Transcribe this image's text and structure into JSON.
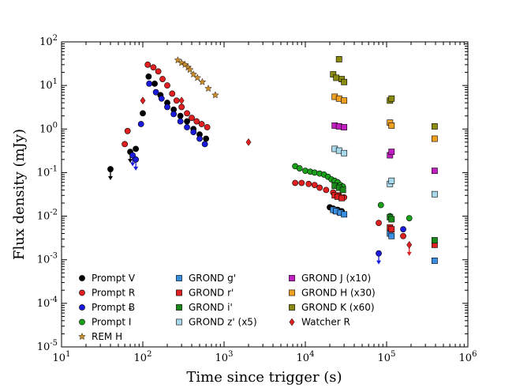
{
  "chart_data": {
    "type": "scatter",
    "title": "",
    "xlabel": "Time since trigger (s)",
    "ylabel": "Flux density (mJy)",
    "xscale": "log",
    "yscale": "log",
    "xlim": [
      10,
      1000000
    ],
    "ylim": [
      1e-05,
      100
    ],
    "x_ticks": [
      {
        "value": 10,
        "mant": "10",
        "exp": "1"
      },
      {
        "value": 100,
        "mant": "10",
        "exp": "2"
      },
      {
        "value": 1000,
        "mant": "10",
        "exp": "3"
      },
      {
        "value": 10000,
        "mant": "10",
        "exp": "4"
      },
      {
        "value": 100000,
        "mant": "10",
        "exp": "5"
      },
      {
        "value": 1000000,
        "mant": "10",
        "exp": "6"
      }
    ],
    "y_ticks": [
      {
        "value": 1e-05,
        "mant": "10",
        "exp": "-5"
      },
      {
        "value": 0.0001,
        "mant": "10",
        "exp": "-4"
      },
      {
        "value": 0.001,
        "mant": "10",
        "exp": "-3"
      },
      {
        "value": 0.01,
        "mant": "10",
        "exp": "-2"
      },
      {
        "value": 0.1,
        "mant": "10",
        "exp": "-1"
      },
      {
        "value": 1,
        "mant": "10",
        "exp": "0"
      },
      {
        "value": 10,
        "mant": "10",
        "exp": "1"
      },
      {
        "value": 100,
        "mant": "10",
        "exp": "2"
      }
    ],
    "legend_position": "lower-left",
    "series": [
      {
        "name": "Prompt V",
        "marker": "circle",
        "color": "#000000",
        "points": [
          [
            82,
            0.35
          ],
          [
            100,
            2.3
          ],
          [
            118,
            16
          ],
          [
            140,
            11
          ],
          [
            165,
            6
          ],
          [
            200,
            4
          ],
          [
            240,
            2.8
          ],
          [
            290,
            2
          ],
          [
            350,
            1.5
          ],
          [
            420,
            1
          ],
          [
            500,
            0.75
          ],
          [
            600,
            0.6
          ],
          [
            20000,
            0.016
          ],
          [
            22000,
            0.015
          ],
          [
            25000,
            0.014
          ],
          [
            28000,
            0.013
          ]
        ],
        "upper_limits": [
          [
            40,
            0.12
          ],
          [
            70,
            0.3
          ]
        ]
      },
      {
        "name": "Prompt R",
        "marker": "circle",
        "color": "#e02020",
        "points": [
          [
            60,
            0.45
          ],
          [
            65,
            0.9
          ],
          [
            115,
            30
          ],
          [
            135,
            26
          ],
          [
            155,
            21
          ],
          [
            175,
            14
          ],
          [
            200,
            10
          ],
          [
            230,
            6.5
          ],
          [
            260,
            4.5
          ],
          [
            300,
            3.2
          ],
          [
            350,
            2.3
          ],
          [
            400,
            1.8
          ],
          [
            460,
            1.5
          ],
          [
            530,
            1.3
          ],
          [
            620,
            1.1
          ],
          [
            7500,
            0.058
          ],
          [
            9000,
            0.058
          ],
          [
            11000,
            0.055
          ],
          [
            13000,
            0.052
          ],
          [
            15000,
            0.045
          ],
          [
            18000,
            0.04
          ],
          [
            22000,
            0.035
          ],
          [
            26000,
            0.03
          ],
          [
            30000,
            0.027
          ],
          [
            80000,
            0.007
          ],
          [
            110000,
            0.004
          ],
          [
            160000,
            0.0035
          ]
        ]
      },
      {
        "name": "Prompt Ƀ",
        "marker": "circle",
        "color": "#1a1adc",
        "points": [
          [
            95,
            1.3
          ],
          [
            120,
            11
          ],
          [
            145,
            7
          ],
          [
            170,
            5
          ],
          [
            200,
            3.2
          ],
          [
            240,
            2.2
          ],
          [
            290,
            1.5
          ],
          [
            350,
            1.1
          ],
          [
            420,
            0.85
          ],
          [
            500,
            0.6
          ],
          [
            580,
            0.45
          ],
          [
            23000,
            0.013
          ],
          [
            26000,
            0.012
          ],
          [
            110000,
            0.005
          ],
          [
            160000,
            0.005
          ]
        ],
        "upper_limits": [
          [
            75,
            0.25
          ],
          [
            82,
            0.2
          ],
          [
            80000,
            0.0014
          ]
        ]
      },
      {
        "name": "Prompt I",
        "marker": "circle",
        "color": "#1aa01a",
        "points": [
          [
            7500,
            0.14
          ],
          [
            8500,
            0.125
          ],
          [
            10000,
            0.11
          ],
          [
            11500,
            0.105
          ],
          [
            13000,
            0.1
          ],
          [
            15000,
            0.095
          ],
          [
            17000,
            0.09
          ],
          [
            19000,
            0.08
          ],
          [
            21000,
            0.07
          ],
          [
            23000,
            0.065
          ],
          [
            25000,
            0.06
          ],
          [
            27000,
            0.052
          ],
          [
            29000,
            0.048
          ],
          [
            85000,
            0.018
          ],
          [
            110000,
            0.01
          ],
          [
            190000,
            0.009
          ]
        ]
      },
      {
        "name": "REM H",
        "marker": "star",
        "color": "#c88a2a",
        "points": [
          [
            270,
            38
          ],
          [
            300,
            33
          ],
          [
            330,
            30
          ],
          [
            360,
            26
          ],
          [
            380,
            23
          ],
          [
            420,
            18
          ],
          [
            470,
            15
          ],
          [
            540,
            12
          ],
          [
            640,
            8.5
          ],
          [
            780,
            6
          ]
        ]
      },
      {
        "name": "GROND g'",
        "marker": "square",
        "color": "#3a8ee0",
        "points": [
          [
            22000,
            0.014
          ],
          [
            24000,
            0.013
          ],
          [
            27000,
            0.012
          ],
          [
            30000,
            0.011
          ],
          [
            110000,
            0.004
          ],
          [
            115000,
            0.0035
          ],
          [
            390000,
            0.00095
          ]
        ]
      },
      {
        "name": "GROND r'",
        "marker": "square",
        "color": "#e02020",
        "points": [
          [
            23000,
            0.03
          ],
          [
            25000,
            0.028
          ],
          [
            28000,
            0.026
          ],
          [
            110000,
            0.0055
          ],
          [
            115000,
            0.005
          ],
          [
            390000,
            0.0022
          ]
        ]
      },
      {
        "name": "GROND i'",
        "marker": "square",
        "color": "#1a8a1a",
        "points": [
          [
            23000,
            0.05
          ],
          [
            26000,
            0.045
          ],
          [
            29000,
            0.04
          ],
          [
            110000,
            0.0095
          ],
          [
            115000,
            0.0085
          ],
          [
            390000,
            0.0028
          ]
        ]
      },
      {
        "name": "GROND z' (x5)",
        "marker": "square",
        "color": "#a8d8ea",
        "points": [
          [
            23000,
            0.35
          ],
          [
            26000,
            0.32
          ],
          [
            30000,
            0.28
          ],
          [
            110000,
            0.055
          ],
          [
            115000,
            0.065
          ],
          [
            390000,
            0.032
          ]
        ]
      },
      {
        "name": "GROND J (x10)",
        "marker": "square",
        "color": "#c020c0",
        "points": [
          [
            23000,
            1.2
          ],
          [
            26000,
            1.15
          ],
          [
            30000,
            1.1
          ],
          [
            110000,
            0.25
          ],
          [
            115000,
            0.3
          ],
          [
            390000,
            0.11
          ]
        ]
      },
      {
        "name": "GROND H (x30)",
        "marker": "square",
        "color": "#f0a020",
        "points": [
          [
            23000,
            5.5
          ],
          [
            26000,
            5
          ],
          [
            30000,
            4.5
          ],
          [
            110000,
            1.4
          ],
          [
            115000,
            1.2
          ],
          [
            390000,
            0.6
          ]
        ]
      },
      {
        "name": "GROND K (x60)",
        "marker": "square",
        "color": "#8a8a10",
        "points": [
          [
            22000,
            18
          ],
          [
            24000,
            15
          ],
          [
            26000,
            40
          ],
          [
            28000,
            14
          ],
          [
            30000,
            12
          ],
          [
            110000,
            4.5
          ],
          [
            115000,
            5
          ],
          [
            390000,
            1.15
          ]
        ]
      },
      {
        "name": "Watcher R",
        "marker": "diamond",
        "color": "#e02020",
        "points": [
          [
            100,
            4.5
          ],
          [
            300,
            4.5
          ],
          [
            2000,
            0.5
          ]
        ],
        "upper_limits": [
          [
            190000,
            0.0022
          ]
        ]
      }
    ]
  }
}
